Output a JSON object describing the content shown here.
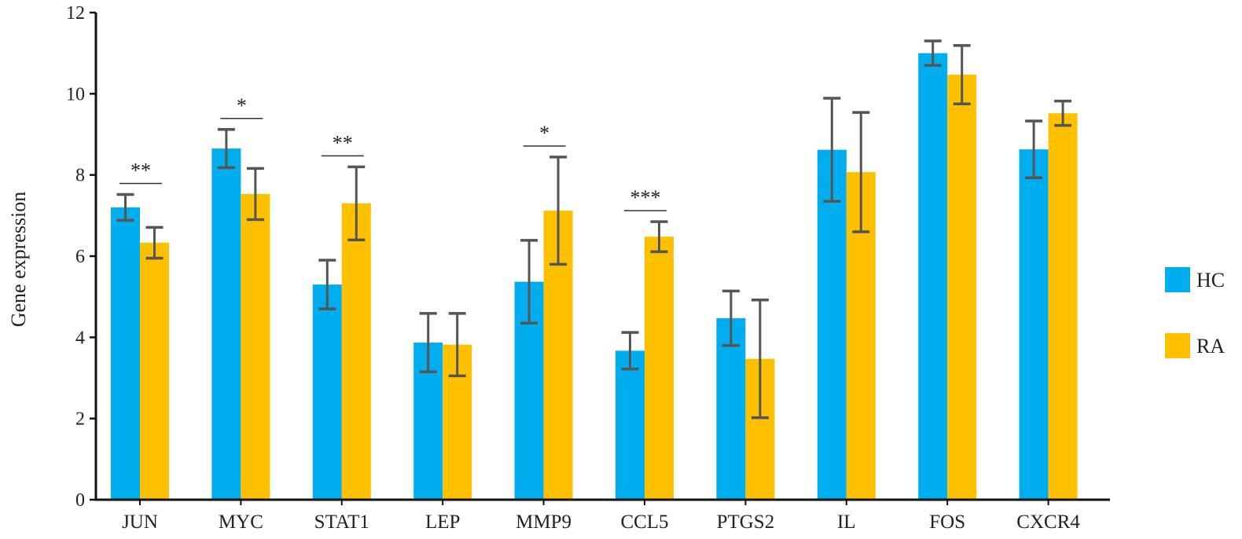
{
  "chart_data": {
    "type": "bar",
    "title": "",
    "xlabel": "",
    "ylabel": "Gene expression",
    "ylim": [
      0,
      12
    ],
    "yticks": [
      "0",
      "2",
      "4",
      "6",
      "8",
      "10",
      "12"
    ],
    "grid": false,
    "legend_position": "right",
    "categories": [
      "JUN",
      "MYC",
      "STAT1",
      "LEP",
      "MMP9",
      "CCL5",
      "PTGS2",
      "IL",
      "FOS",
      "CXCR4"
    ],
    "series": [
      {
        "name": "HC",
        "color": "#00AEEF",
        "values": [
          7.2,
          8.65,
          5.3,
          3.87,
          5.37,
          3.67,
          4.47,
          8.62,
          11.0,
          8.63
        ],
        "errors": [
          0.32,
          0.47,
          0.6,
          0.72,
          1.02,
          0.45,
          0.67,
          1.27,
          0.3,
          0.7
        ]
      },
      {
        "name": "RA",
        "color": "#FFC000",
        "values": [
          6.33,
          7.53,
          7.3,
          3.82,
          7.12,
          6.48,
          3.47,
          8.07,
          10.47,
          9.52
        ],
        "errors": [
          0.38,
          0.63,
          0.9,
          0.77,
          1.32,
          0.37,
          1.45,
          1.47,
          0.72,
          0.3
        ]
      }
    ],
    "annotations": [
      {
        "category": "JUN",
        "text": "**"
      },
      {
        "category": "MYC",
        "text": "*"
      },
      {
        "category": "STAT1",
        "text": "**"
      },
      {
        "category": "MMP9",
        "text": "*"
      },
      {
        "category": "CCL5",
        "text": "***"
      }
    ]
  }
}
